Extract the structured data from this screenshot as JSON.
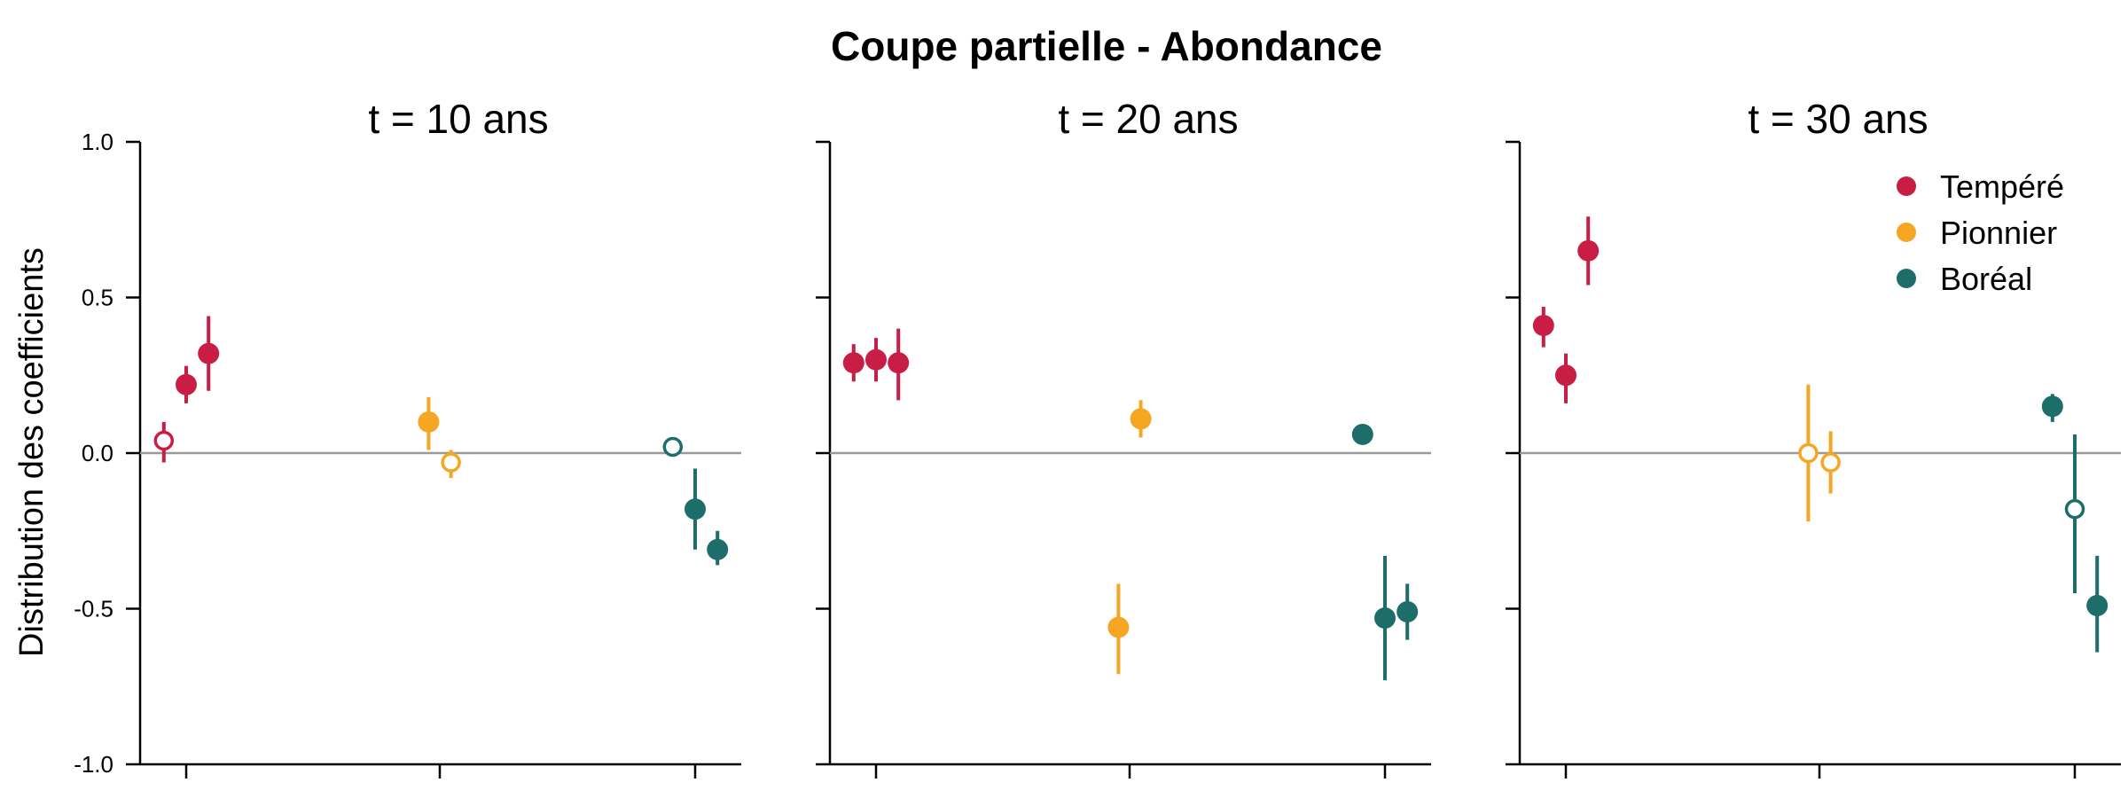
{
  "colors": {
    "tempere": "#C81E45",
    "pionnier": "#F5A623",
    "boreal": "#1D6E6A",
    "zero_line": "#999999",
    "axis": "#000000"
  },
  "chart_data": {
    "type": "scatter",
    "title": "Coupe partielle - Abondance",
    "ylabel": "Distribution des coefficients",
    "ylim": [
      -1.0,
      1.0
    ],
    "yticks": [
      1.0,
      0.5,
      0.0,
      -0.5,
      -1.0
    ],
    "ytick_labels": [
      "1.0",
      "0.5",
      "0.0",
      "-0.5",
      "-1.0"
    ],
    "x_groups": 3,
    "grid": false,
    "legend": {
      "placement": "top-right",
      "entries": [
        {
          "label": "Tempéré",
          "color_key": "tempere"
        },
        {
          "label": "Pionnier",
          "color_key": "pionnier"
        },
        {
          "label": "Boréal",
          "color_key": "boreal"
        }
      ]
    },
    "panels": [
      {
        "title": "t = 10 ans",
        "points": [
          {
            "series": "tempere",
            "x": -0.18,
            "y": 0.04,
            "low": -0.03,
            "high": 0.1,
            "filled": false
          },
          {
            "series": "tempere",
            "x": 0.0,
            "y": 0.22,
            "low": 0.16,
            "high": 0.28,
            "filled": true
          },
          {
            "series": "tempere",
            "x": 0.18,
            "y": 0.32,
            "low": 0.2,
            "high": 0.44,
            "filled": true
          },
          {
            "series": "pionnier",
            "x": -0.09,
            "y": 0.1,
            "low": 0.01,
            "high": 0.18,
            "filled": true
          },
          {
            "series": "pionnier",
            "x": 0.09,
            "y": -0.03,
            "low": -0.08,
            "high": 0.01,
            "filled": false
          },
          {
            "series": "boreal",
            "x": -0.18,
            "y": 0.02,
            "low": 0.02,
            "high": 0.02,
            "filled": false
          },
          {
            "series": "boreal",
            "x": 0.0,
            "y": -0.18,
            "low": -0.31,
            "high": -0.05,
            "filled": true
          },
          {
            "series": "boreal",
            "x": 0.18,
            "y": -0.31,
            "low": -0.36,
            "high": -0.25,
            "filled": true
          }
        ]
      },
      {
        "title": "t = 20 ans",
        "points": [
          {
            "series": "tempere",
            "x": -0.18,
            "y": 0.29,
            "low": 0.23,
            "high": 0.35,
            "filled": true
          },
          {
            "series": "tempere",
            "x": 0.0,
            "y": 0.3,
            "low": 0.23,
            "high": 0.37,
            "filled": true
          },
          {
            "series": "tempere",
            "x": 0.18,
            "y": 0.29,
            "low": 0.17,
            "high": 0.4,
            "filled": true
          },
          {
            "series": "pionnier",
            "x": -0.09,
            "y": -0.56,
            "low": -0.71,
            "high": -0.42,
            "filled": true
          },
          {
            "series": "pionnier",
            "x": 0.09,
            "y": 0.11,
            "low": 0.05,
            "high": 0.17,
            "filled": true
          },
          {
            "series": "boreal",
            "x": -0.18,
            "y": 0.06,
            "low": 0.04,
            "high": 0.08,
            "filled": true
          },
          {
            "series": "boreal",
            "x": 0.0,
            "y": -0.53,
            "low": -0.73,
            "high": -0.33,
            "filled": true
          },
          {
            "series": "boreal",
            "x": 0.18,
            "y": -0.51,
            "low": -0.6,
            "high": -0.42,
            "filled": true
          }
        ]
      },
      {
        "title": "t = 30 ans",
        "points": [
          {
            "series": "tempere",
            "x": -0.18,
            "y": 0.41,
            "low": 0.34,
            "high": 0.47,
            "filled": true
          },
          {
            "series": "tempere",
            "x": 0.0,
            "y": 0.25,
            "low": 0.16,
            "high": 0.32,
            "filled": true
          },
          {
            "series": "tempere",
            "x": 0.18,
            "y": 0.65,
            "low": 0.54,
            "high": 0.76,
            "filled": true
          },
          {
            "series": "pionnier",
            "x": -0.09,
            "y": 0.0,
            "low": -0.22,
            "high": 0.22,
            "filled": false
          },
          {
            "series": "pionnier",
            "x": 0.09,
            "y": -0.03,
            "low": -0.13,
            "high": 0.07,
            "filled": false
          },
          {
            "series": "boreal",
            "x": -0.18,
            "y": 0.15,
            "low": 0.1,
            "high": 0.19,
            "filled": true
          },
          {
            "series": "boreal",
            "x": 0.0,
            "y": -0.18,
            "low": -0.45,
            "high": 0.06,
            "filled": false
          },
          {
            "series": "boreal",
            "x": 0.18,
            "y": -0.49,
            "low": -0.64,
            "high": -0.33,
            "filled": true
          }
        ]
      }
    ]
  }
}
